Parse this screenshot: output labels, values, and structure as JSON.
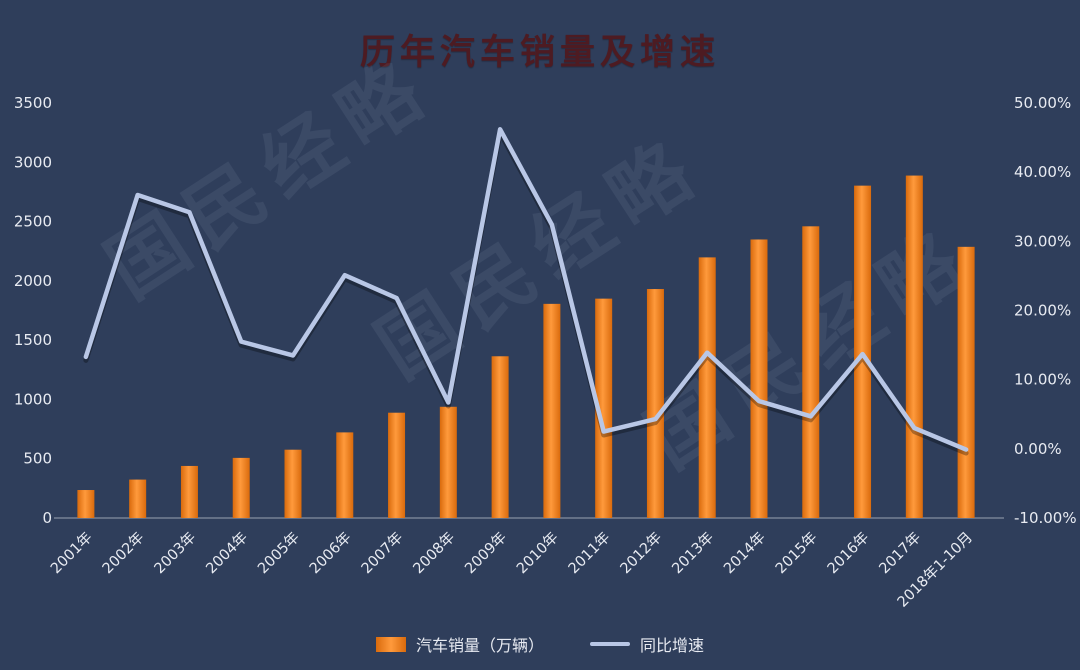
{
  "title": "历年汽车销量及增速",
  "watermark": "国民经略",
  "colors": {
    "background": "#2f3e5b",
    "bar": "#ed7d31",
    "line": "#b9c7e6",
    "title": "#4d1b22",
    "axis_text": "#e8ebf2"
  },
  "legend": [
    {
      "label": "汽车销量（万辆）",
      "type": "bar"
    },
    {
      "label": "同比增速",
      "type": "line"
    }
  ],
  "chart_data": {
    "type": "bar",
    "title": "历年汽车销量及增速",
    "categories": [
      "2001年",
      "2002年",
      "2003年",
      "2004年",
      "2005年",
      "2006年",
      "2007年",
      "2008年",
      "2009年",
      "2010年",
      "2011年",
      "2012年",
      "2013年",
      "2014年",
      "2015年",
      "2016年",
      "2017年",
      "2018年1-10月"
    ],
    "series": [
      {
        "name": "汽车销量（万辆）",
        "type": "bar",
        "axis": "left",
        "values": [
          236,
          324,
          439,
          507,
          576,
          722,
          888,
          938,
          1364,
          1806,
          1850,
          1931,
          2198,
          2349,
          2460,
          2803,
          2888,
          2287
        ]
      },
      {
        "name": "同比增速",
        "type": "line",
        "axis": "right",
        "values": [
          13.3,
          36.7,
          34.2,
          15.5,
          13.5,
          25.1,
          21.8,
          6.7,
          46.2,
          32.4,
          2.5,
          4.3,
          13.9,
          6.9,
          4.7,
          13.7,
          3.0,
          -0.1
        ]
      }
    ],
    "left_axis": {
      "min": 0,
      "max": 3500,
      "step": 500,
      "ticks": [
        "0",
        "500",
        "1000",
        "1500",
        "2000",
        "2500",
        "3000",
        "3500"
      ]
    },
    "right_axis": {
      "min": -10,
      "max": 50,
      "step": 10,
      "ticks": [
        "-10.00%",
        "0.00%",
        "10.00%",
        "20.00%",
        "30.00%",
        "40.00%",
        "50.00%"
      ]
    },
    "grid": false,
    "legend_position": "bottom"
  }
}
